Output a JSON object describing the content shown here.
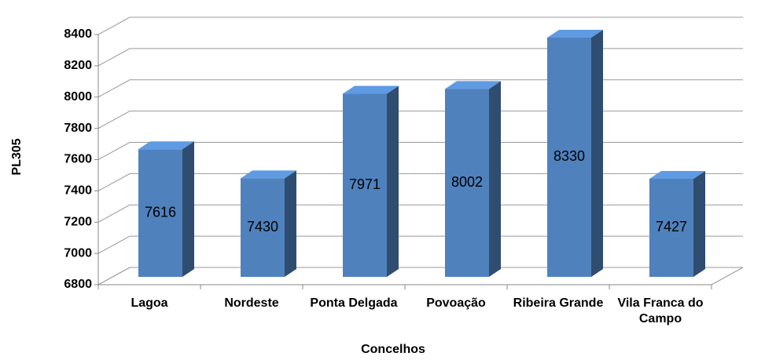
{
  "chart_data": {
    "type": "bar3d",
    "x_label": "Concelhos",
    "y_label": "PL305",
    "categories": [
      "Lagoa",
      "Nordeste",
      "Ponta Delgada",
      "Povoação",
      "Ribeira Grande",
      "Vila Franca do Campo"
    ],
    "values": [
      7616,
      7430,
      7971,
      8002,
      8330,
      7427
    ],
    "color": "#4f81bd",
    "ylim": [
      6800,
      8400
    ],
    "yticks": [
      6800,
      7000,
      7200,
      7400,
      7600,
      7800,
      8000,
      8200,
      8400
    ],
    "grid": true
  }
}
